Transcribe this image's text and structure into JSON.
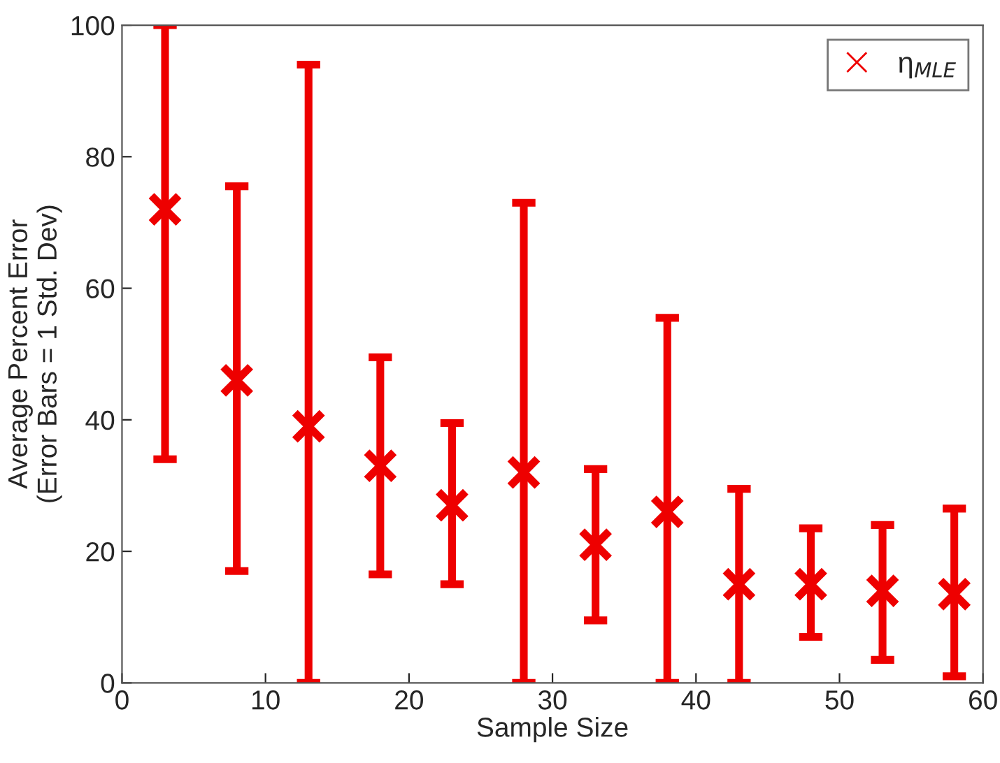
{
  "chart_data": {
    "type": "scatter",
    "xlabel": "Sample Size",
    "ylabel": "Average Percent Error\n(Error Bars = 1 Std. Dev)",
    "x": [
      3,
      8,
      13,
      18,
      23,
      28,
      33,
      38,
      43,
      48,
      53,
      58
    ],
    "series": [
      {
        "name": "η$_{MLE}$",
        "color": "#ee0000",
        "values": [
          72,
          46,
          39,
          33,
          27,
          32,
          21,
          26,
          15,
          15,
          14,
          13.5
        ],
        "errors": [
          [
            34,
            100
          ],
          [
            17,
            75.5
          ],
          [
            0,
            94
          ],
          [
            16.5,
            49.5
          ],
          [
            15,
            39.5
          ],
          [
            0,
            73
          ],
          [
            9.5,
            32.5
          ],
          [
            0,
            55.5
          ],
          [
            0,
            29.5
          ],
          [
            7,
            23.5
          ],
          [
            3.5,
            24
          ],
          [
            1,
            26.5
          ]
        ]
      }
    ],
    "xlim": [
      0,
      60
    ],
    "xticks": [
      0,
      10,
      20,
      30,
      40,
      50,
      60
    ],
    "ylim": [
      0,
      100
    ],
    "yticks": [
      0,
      20,
      40,
      60,
      80,
      100
    ],
    "marker": "cross",
    "legend": "top right",
    "grid": false
  }
}
